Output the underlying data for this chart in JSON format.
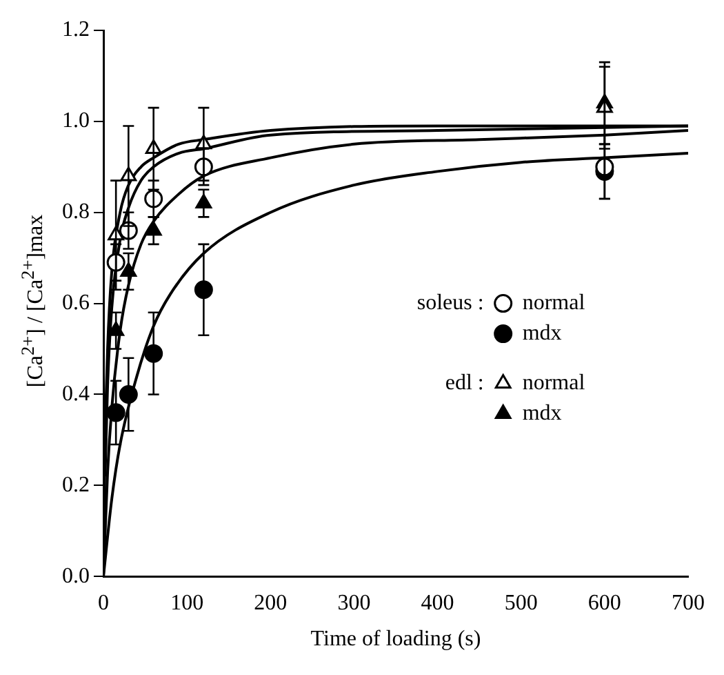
{
  "chart_data": {
    "type": "scatter",
    "xlabel": "Time of loading (s)",
    "ylabel": "[Ca$^{2+}$] / [Ca$^{2+}$]max",
    "xlim": [
      0,
      700
    ],
    "xticks": [
      0,
      100,
      200,
      300,
      400,
      500,
      600,
      700
    ],
    "ylim": [
      0,
      1.2
    ],
    "yticks": [
      {
        "value": 0,
        "label": "0.0"
      },
      {
        "value": 0.2,
        "label": "0.2"
      },
      {
        "value": 0.4,
        "label": "0.4"
      },
      {
        "value": 0.6,
        "label": "0.6"
      },
      {
        "value": 0.8,
        "label": "0.8"
      },
      {
        "value": 1,
        "label": "1.0"
      },
      {
        "value": 1.2,
        "label": "1.2"
      }
    ],
    "grid": false,
    "legend": "right",
    "annotations": [
      "soleus :",
      "edl :"
    ],
    "series": [
      {
        "name": "normal",
        "color": "#ffffff",
        "marker": "circle",
        "x": [
          15,
          30,
          60,
          120,
          600
        ],
        "values": [
          0.69,
          0.76,
          0.83,
          0.9,
          0.9
        ],
        "errors": [
          0.04,
          0.04,
          0.04,
          0.04,
          0.07
        ]
      },
      {
        "name": "mdx",
        "color": "#000000",
        "marker": "circle",
        "x": [
          15,
          30,
          60,
          120,
          600
        ],
        "values": [
          0.36,
          0.4,
          0.49,
          0.63,
          0.89
        ],
        "errors": [
          0.07,
          0.08,
          0.09,
          0.1,
          0.06
        ]
      },
      {
        "name": "normal",
        "color": "#ffffff",
        "marker": "triangle",
        "x": [
          15,
          30,
          60,
          120,
          600
        ],
        "values": [
          0.75,
          0.88,
          0.94,
          0.95,
          1.03
        ],
        "errors": [
          0.12,
          0.11,
          0.09,
          0.08,
          0.09
        ]
      },
      {
        "name": "mdx",
        "color": "#000000",
        "marker": "triangle",
        "x": [
          15,
          30,
          60,
          120,
          600
        ],
        "values": [
          0.54,
          0.67,
          0.76,
          0.82,
          1.04
        ],
        "errors": [
          0.04,
          0.04,
          0.03,
          0.03,
          0.09
        ]
      },
      {
        "type": "line",
        "color": "#000000",
        "marker": "none",
        "x": [
          0,
          10,
          20,
          40,
          60,
          80,
          120,
          200,
          300,
          400,
          500,
          600,
          700
        ],
        "values": [
          0,
          0.17,
          0.29,
          0.44,
          0.55,
          0.62,
          0.71,
          0.8,
          0.86,
          0.89,
          0.91,
          0.92,
          0.93
        ]
      },
      {
        "type": "line",
        "color": "#000000",
        "marker": "none",
        "x": [
          0,
          5,
          10,
          20,
          30,
          45,
          60,
          90,
          120,
          200,
          300,
          450,
          600,
          700
        ],
        "values": [
          0,
          0.23,
          0.37,
          0.54,
          0.64,
          0.73,
          0.78,
          0.84,
          0.88,
          0.92,
          0.95,
          0.96,
          0.97,
          0.98
        ]
      },
      {
        "type": "line",
        "color": "#000000",
        "marker": "none",
        "x": [
          0,
          2,
          5,
          10,
          20,
          30,
          45,
          60,
          90,
          120,
          200,
          400,
          700
        ],
        "values": [
          0,
          0.29,
          0.5,
          0.67,
          0.8,
          0.86,
          0.9,
          0.92,
          0.95,
          0.96,
          0.98,
          0.99,
          0.99
        ]
      },
      {
        "type": "line",
        "color": "#000000",
        "marker": "none",
        "x": [
          2,
          5,
          10,
          20,
          30,
          45,
          60,
          90,
          120,
          200,
          400,
          700
        ],
        "values": [
          0.22,
          0.42,
          0.59,
          0.74,
          0.81,
          0.87,
          0.9,
          0.93,
          0.94,
          0.97,
          0.98,
          0.99
        ]
      }
    ]
  }
}
